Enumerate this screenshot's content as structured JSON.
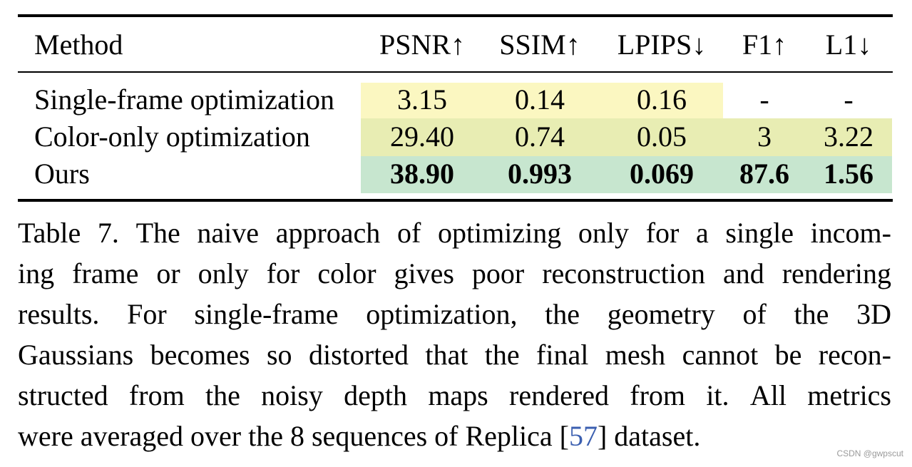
{
  "table": {
    "headers": [
      "Method",
      "PSNR↑",
      "SSIM↑",
      "LPIPS↓",
      "F1↑",
      "L1↓"
    ],
    "rows": [
      {
        "method": "Single-frame optimization",
        "values": [
          "3.15",
          "0.14",
          "0.16",
          "-",
          "-"
        ]
      },
      {
        "method": "Color-only optimization",
        "values": [
          "29.40",
          "0.74",
          "0.05",
          "3",
          "3.22"
        ]
      },
      {
        "method": "Ours",
        "values": [
          "38.90",
          "0.993",
          "0.069",
          "87.6",
          "1.56"
        ]
      }
    ],
    "colors": {
      "row1": "#fbf7c1",
      "row2": "#e8edb3",
      "row3": "#c7e6cf",
      "citation": "#3b5fb0"
    }
  },
  "caption": {
    "lines": [
      [
        "Table",
        "7.",
        "The",
        "naive",
        "approach",
        "of",
        "optimizing",
        "only",
        "for",
        "a",
        "single",
        "incom-"
      ],
      [
        "ing",
        "frame",
        "or",
        "only",
        "for",
        "color",
        "gives",
        "poor",
        "reconstruction",
        "and",
        "rendering"
      ],
      [
        "results.",
        "For",
        "single-frame",
        "optimization,",
        "the",
        "geometry",
        "of",
        "the",
        "3D"
      ],
      [
        "Gaussians",
        "becomes",
        "so",
        "distorted",
        "that",
        "the",
        "final",
        "mesh",
        "cannot",
        "be",
        "recon-"
      ],
      [
        "structed",
        "from",
        "the",
        "noisy",
        "depth",
        "maps",
        "rendered",
        "from",
        "it.",
        "All",
        "metrics"
      ]
    ],
    "last_line_before": "were averaged over the 8 sequences of Replica [",
    "citation": "57",
    "last_line_after": "] dataset."
  },
  "watermark": "CSDN @gwpscut"
}
